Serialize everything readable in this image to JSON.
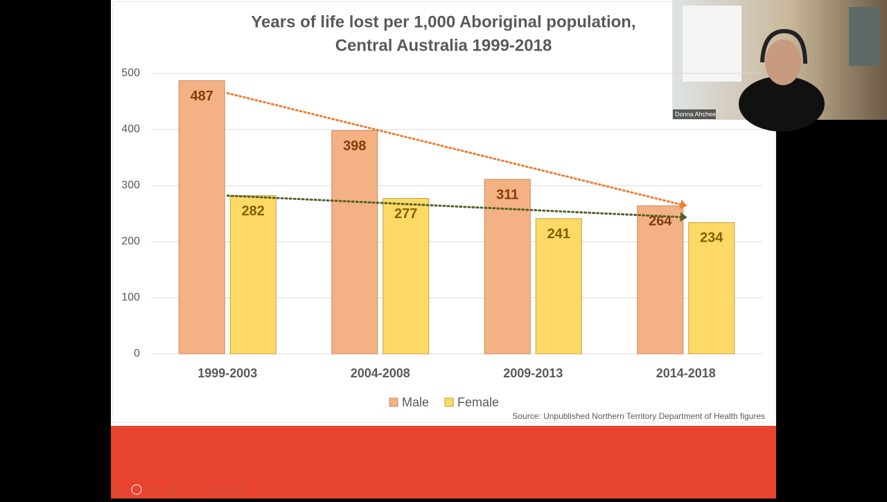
{
  "chart_data": {
    "type": "bar",
    "title": [
      "Years of life lost per 1,000 Aboriginal population,",
      "Central Australia 1999-2018"
    ],
    "categories": [
      "1999-2003",
      "2004-2008",
      "2009-2013",
      "2014-2018"
    ],
    "series": [
      {
        "name": "Male",
        "color": "#f4b183",
        "values": [
          487,
          398,
          311,
          264
        ]
      },
      {
        "name": "Female",
        "color": "#ffd966",
        "values": [
          282,
          277,
          241,
          234
        ]
      }
    ],
    "ylim": [
      0,
      500
    ],
    "yticks": [
      0,
      100,
      200,
      300,
      400,
      500
    ],
    "grid": true,
    "legend": "bottom",
    "source": "Source: Unpublished Northern Territory Department of Health figures"
  },
  "participant": {
    "name": "Donna Ahchee"
  }
}
